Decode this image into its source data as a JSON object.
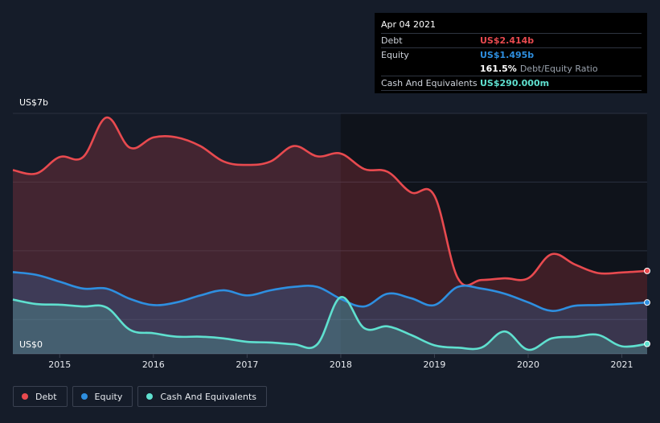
{
  "tooltip": {
    "date": "Apr 04 2021",
    "debt_label": "Debt",
    "debt_value": "US$2.414b",
    "equity_label": "Equity",
    "equity_value": "US$1.495b",
    "ratio_value": "161.5%",
    "ratio_label": "Debt/Equity Ratio",
    "cash_label": "Cash And Equivalents",
    "cash_value": "US$290.000m"
  },
  "legend": [
    {
      "label": "Debt",
      "color": "#e84a4f"
    },
    {
      "label": "Equity",
      "color": "#2e8fe0"
    },
    {
      "label": "Cash And Equivalents",
      "color": "#5fe0cf"
    }
  ],
  "chart_data": {
    "type": "area",
    "y_top_label": "US$7b",
    "y_bottom_label": "US$0",
    "ylim": [
      0,
      7
    ],
    "xlim": [
      2014.5,
      2021.27
    ],
    "x_ticks": [
      "2015",
      "2016",
      "2017",
      "2018",
      "2019",
      "2020",
      "2021"
    ],
    "x_tick_values": [
      2015,
      2016,
      2017,
      2018,
      2019,
      2020,
      2021
    ],
    "highlight_from": 2018.0,
    "series": [
      {
        "name": "Debt",
        "color": "#e84a4f",
        "points": [
          [
            2014.5,
            5.35
          ],
          [
            2014.75,
            5.25
          ],
          [
            2015.0,
            5.73
          ],
          [
            2015.25,
            5.73
          ],
          [
            2015.5,
            6.88
          ],
          [
            2015.75,
            6.0
          ],
          [
            2016.0,
            6.3
          ],
          [
            2016.25,
            6.3
          ],
          [
            2016.5,
            6.05
          ],
          [
            2016.75,
            5.6
          ],
          [
            2017.0,
            5.5
          ],
          [
            2017.25,
            5.6
          ],
          [
            2017.5,
            6.05
          ],
          [
            2017.75,
            5.75
          ],
          [
            2018.0,
            5.83
          ],
          [
            2018.25,
            5.38
          ],
          [
            2018.5,
            5.3
          ],
          [
            2018.75,
            4.7
          ],
          [
            2019.0,
            4.6
          ],
          [
            2019.25,
            2.2
          ],
          [
            2019.5,
            2.15
          ],
          [
            2019.75,
            2.2
          ],
          [
            2020.0,
            2.2
          ],
          [
            2020.25,
            2.9
          ],
          [
            2020.5,
            2.6
          ],
          [
            2020.75,
            2.35
          ],
          [
            2021.0,
            2.37
          ],
          [
            2021.27,
            2.414
          ]
        ]
      },
      {
        "name": "Equity",
        "color": "#2e8fe0",
        "points": [
          [
            2014.5,
            2.38
          ],
          [
            2014.75,
            2.3
          ],
          [
            2015.0,
            2.1
          ],
          [
            2015.25,
            1.9
          ],
          [
            2015.5,
            1.9
          ],
          [
            2015.75,
            1.6
          ],
          [
            2016.0,
            1.42
          ],
          [
            2016.25,
            1.5
          ],
          [
            2016.5,
            1.7
          ],
          [
            2016.75,
            1.85
          ],
          [
            2017.0,
            1.7
          ],
          [
            2017.25,
            1.85
          ],
          [
            2017.5,
            1.95
          ],
          [
            2017.75,
            1.95
          ],
          [
            2018.0,
            1.6
          ],
          [
            2018.25,
            1.38
          ],
          [
            2018.5,
            1.75
          ],
          [
            2018.75,
            1.62
          ],
          [
            2019.0,
            1.42
          ],
          [
            2019.25,
            1.95
          ],
          [
            2019.5,
            1.9
          ],
          [
            2019.75,
            1.75
          ],
          [
            2020.0,
            1.5
          ],
          [
            2020.25,
            1.25
          ],
          [
            2020.5,
            1.4
          ],
          [
            2020.75,
            1.42
          ],
          [
            2021.0,
            1.45
          ],
          [
            2021.27,
            1.495
          ]
        ]
      },
      {
        "name": "Cash And Equivalents",
        "color": "#5fe0cf",
        "points": [
          [
            2014.5,
            1.58
          ],
          [
            2014.75,
            1.45
          ],
          [
            2015.0,
            1.43
          ],
          [
            2015.25,
            1.38
          ],
          [
            2015.5,
            1.35
          ],
          [
            2015.75,
            0.7
          ],
          [
            2016.0,
            0.6
          ],
          [
            2016.25,
            0.5
          ],
          [
            2016.5,
            0.5
          ],
          [
            2016.75,
            0.45
          ],
          [
            2017.0,
            0.35
          ],
          [
            2017.25,
            0.33
          ],
          [
            2017.5,
            0.28
          ],
          [
            2017.75,
            0.28
          ],
          [
            2018.0,
            1.65
          ],
          [
            2018.25,
            0.75
          ],
          [
            2018.5,
            0.8
          ],
          [
            2018.75,
            0.55
          ],
          [
            2019.0,
            0.25
          ],
          [
            2019.25,
            0.18
          ],
          [
            2019.5,
            0.18
          ],
          [
            2019.75,
            0.65
          ],
          [
            2020.0,
            0.12
          ],
          [
            2020.25,
            0.45
          ],
          [
            2020.5,
            0.5
          ],
          [
            2020.75,
            0.55
          ],
          [
            2021.0,
            0.22
          ],
          [
            2021.27,
            0.29
          ]
        ]
      }
    ]
  }
}
